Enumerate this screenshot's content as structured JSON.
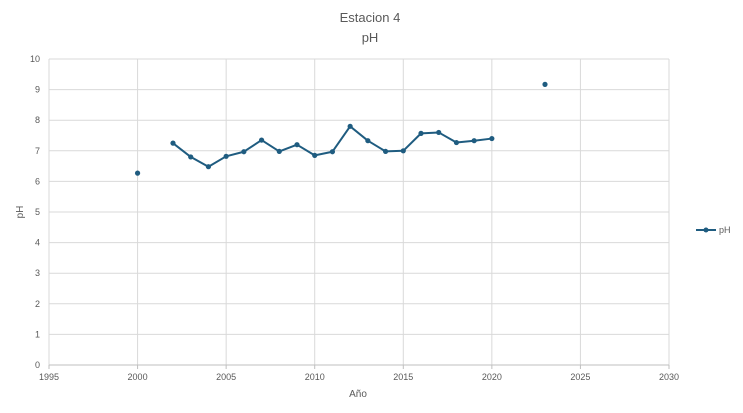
{
  "chart_data": {
    "type": "line",
    "title": "Estacion 4",
    "subtitle": "pH",
    "xlabel": "Año",
    "ylabel": "pH",
    "xlim": [
      1995,
      2030
    ],
    "ylim": [
      0,
      10
    ],
    "x_ticks": [
      1995,
      2000,
      2005,
      2010,
      2015,
      2020,
      2025,
      2030
    ],
    "y_ticks": [
      0,
      1,
      2,
      3,
      4,
      5,
      6,
      7,
      8,
      9,
      10
    ],
    "grid": true,
    "legend_position": "right",
    "series": [
      {
        "name": "pH",
        "color": "#1f5c80",
        "points": [
          {
            "x": 2000,
            "y": 6.27
          },
          {
            "x": 2002,
            "y": 7.25
          },
          {
            "x": 2003,
            "y": 6.8
          },
          {
            "x": 2004,
            "y": 6.48
          },
          {
            "x": 2005,
            "y": 6.82
          },
          {
            "x": 2006,
            "y": 6.97
          },
          {
            "x": 2007,
            "y": 7.35
          },
          {
            "x": 2008,
            "y": 6.98
          },
          {
            "x": 2009,
            "y": 7.2
          },
          {
            "x": 2010,
            "y": 6.85
          },
          {
            "x": 2011,
            "y": 6.97
          },
          {
            "x": 2012,
            "y": 7.8
          },
          {
            "x": 2013,
            "y": 7.33
          },
          {
            "x": 2014,
            "y": 6.98
          },
          {
            "x": 2015,
            "y": 7.0
          },
          {
            "x": 2016,
            "y": 7.57
          },
          {
            "x": 2017,
            "y": 7.6
          },
          {
            "x": 2018,
            "y": 7.27
          },
          {
            "x": 2019,
            "y": 7.33
          },
          {
            "x": 2020,
            "y": 7.4
          },
          {
            "x": 2023,
            "y": 9.17
          }
        ]
      }
    ]
  }
}
